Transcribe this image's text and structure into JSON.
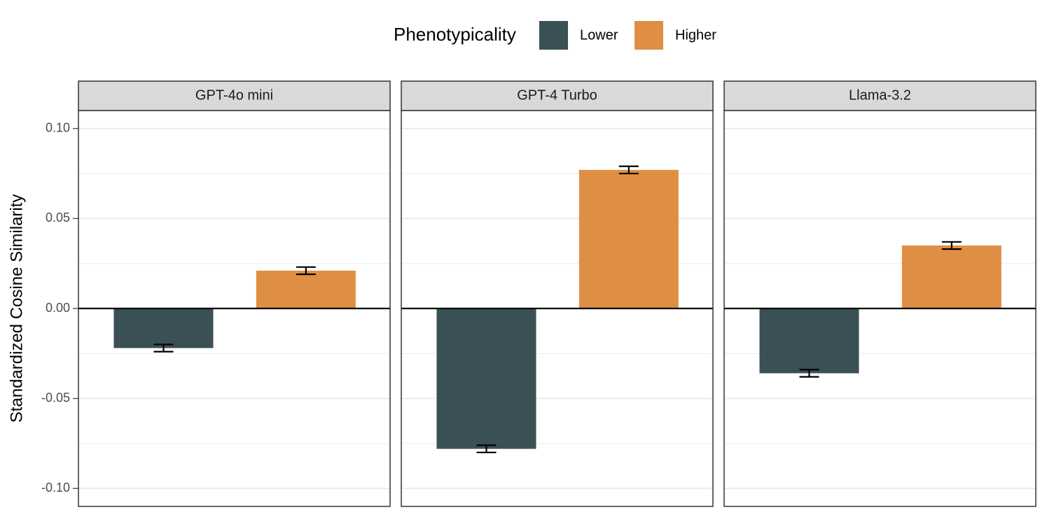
{
  "chart_data": {
    "type": "bar",
    "ylabel": "Standardized Cosine Similarity",
    "legend_title": "Phenotypicality",
    "facets": [
      "GPT-4o mini",
      "GPT-4 Turbo",
      "Llama-3.2"
    ],
    "series": [
      {
        "name": "Lower",
        "color": "#3a5055",
        "values": [
          -0.022,
          -0.078,
          -0.036
        ],
        "errors": [
          0.002,
          0.002,
          0.002
        ]
      },
      {
        "name": "Higher",
        "color": "#de8f44",
        "values": [
          0.021,
          0.077,
          0.035
        ],
        "errors": [
          0.002,
          0.002,
          0.002
        ]
      }
    ],
    "ylim": [
      -0.11,
      0.11
    ],
    "yticks": [
      {
        "value": -0.1,
        "label": "-0.10"
      },
      {
        "value": -0.05,
        "label": "-0.05"
      },
      {
        "value": 0,
        "label": "0.00"
      },
      {
        "value": 0.05,
        "label": "0.05"
      },
      {
        "value": 0.1,
        "label": "0.10"
      }
    ],
    "minor_yticks": [
      -0.075,
      -0.025,
      0.025,
      0.075
    ],
    "grid": true
  }
}
